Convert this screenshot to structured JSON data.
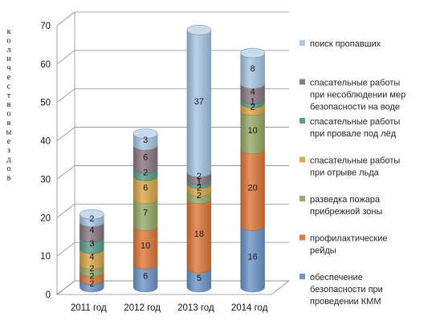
{
  "chart_data": {
    "type": "bar",
    "stacked": true,
    "style": "3d-cylinder",
    "title": "",
    "ylabel": "количество выездов",
    "xlabel": "",
    "ylim": [
      0,
      70
    ],
    "yticks": [
      0,
      10,
      20,
      30,
      40,
      50,
      60,
      70
    ],
    "grid": true,
    "legend_position": "right",
    "categories": [
      "2011 год",
      "2012 год",
      "2013 год",
      "2014 год"
    ],
    "series": [
      {
        "name": "обеспечение безопасности при проведении  КММ",
        "color": "#6f97c8",
        "values": [
          2,
          6,
          5,
          16
        ]
      },
      {
        "name": "профилактические рейды",
        "color": "#e07a3c",
        "values": [
          2,
          10,
          18,
          20
        ]
      },
      {
        "name": "разведка пожара прибрежной зоны",
        "color": "#9aab6a",
        "values": [
          2,
          7,
          2,
          10
        ]
      },
      {
        "name": "спасательные работы при отрыве льда",
        "color": "#dca94a",
        "values": [
          4,
          6,
          2,
          2
        ]
      },
      {
        "name": "спасательные работы при провале под лёд",
        "color": "#5a9e8c",
        "values": [
          3,
          2,
          1,
          1
        ]
      },
      {
        "name": "спасательные работы при несоблюдении  мер безопасности на воде",
        "color": "#8a7b82",
        "values": [
          4,
          6,
          2,
          4
        ]
      },
      {
        "name": "поиск пропавших",
        "color": "#a9c7e4",
        "values": [
          2,
          3,
          37,
          8
        ]
      }
    ],
    "legend": [
      {
        "lines": [
          "поиск пропавших"
        ]
      },
      {
        "lines": [
          "спасательные работы",
          "при несоблюдении  мер",
          "безопасности на воде"
        ]
      },
      {
        "lines": [
          "спасательные работы",
          "при провале под лёд"
        ]
      },
      {
        "lines": [
          "спасательные работы",
          "при отрыве льда"
        ]
      },
      {
        "lines": [
          "разведка пожара",
          "прибрежной зоны"
        ]
      },
      {
        "lines": [
          "профилактические",
          "рейды"
        ]
      },
      {
        "lines": [
          "обеспечение",
          "безопасности при",
          "проведении  КММ"
        ]
      }
    ]
  }
}
